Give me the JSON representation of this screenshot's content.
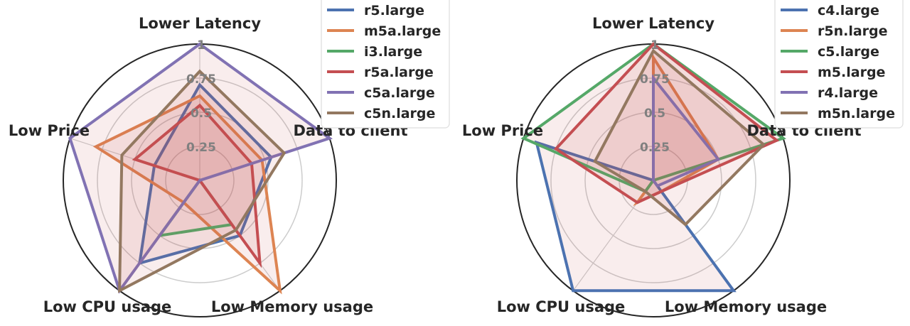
{
  "chart_data": [
    {
      "type": "radar",
      "axes": [
        "Lower Latency",
        "Data to client",
        "Low Memory usage",
        "Low CPU usage",
        "Low Price"
      ],
      "ticks": [
        "0.25",
        "0.5",
        "0.75",
        "1"
      ],
      "rlim": [
        0,
        1
      ],
      "grid": true,
      "legend_position": "top-right",
      "series": [
        {
          "name": "r5.large",
          "color": "#4c72b0",
          "values": [
            0.7,
            0.55,
            0.5,
            0.75,
            0.35
          ]
        },
        {
          "name": "m5a.large",
          "color": "#dd8452",
          "values": [
            0.62,
            0.48,
            1.0,
            0.2,
            0.8
          ]
        },
        {
          "name": "i3.large",
          "color": "#55a868",
          "values": [
            0.0,
            0.0,
            0.4,
            0.5,
            0.0
          ]
        },
        {
          "name": "r5a.large",
          "color": "#c44e52",
          "values": [
            0.55,
            0.4,
            0.75,
            0.0,
            0.5
          ]
        },
        {
          "name": "c5a.large",
          "color": "#8172b3",
          "values": [
            1.0,
            1.0,
            0.0,
            1.0,
            1.0
          ]
        },
        {
          "name": "c5n.large",
          "color": "#937860",
          "values": [
            0.8,
            0.65,
            0.45,
            1.0,
            0.6
          ]
        }
      ]
    },
    {
      "type": "radar",
      "axes": [
        "Lower Latency",
        "Data to client",
        "Low Memory usage",
        "Low CPU usage",
        "Low Price"
      ],
      "ticks": [
        "0.25",
        "0.5",
        "0.75",
        "1"
      ],
      "rlim": [
        0,
        1
      ],
      "grid": true,
      "legend_position": "top-right",
      "series": [
        {
          "name": "c4.large",
          "color": "#4c72b0",
          "values": [
            0.0,
            0.0,
            1.0,
            1.0,
            0.9
          ]
        },
        {
          "name": "r5n.large",
          "color": "#dd8452",
          "values": [
            0.9,
            0.5,
            0.1,
            0.2,
            0.0
          ]
        },
        {
          "name": "c5.large",
          "color": "#55a868",
          "values": [
            1.0,
            1.0,
            0.0,
            0.1,
            1.0
          ]
        },
        {
          "name": "m5.large",
          "color": "#c44e52",
          "values": [
            1.0,
            0.95,
            0.1,
            0.2,
            0.75
          ]
        },
        {
          "name": "r4.large",
          "color": "#8172b3",
          "values": [
            0.75,
            0.5,
            0.05,
            0.0,
            0.0
          ]
        },
        {
          "name": "m5n.large",
          "color": "#937860",
          "values": [
            0.95,
            0.85,
            0.4,
            0.1,
            0.45
          ]
        }
      ]
    }
  ]
}
